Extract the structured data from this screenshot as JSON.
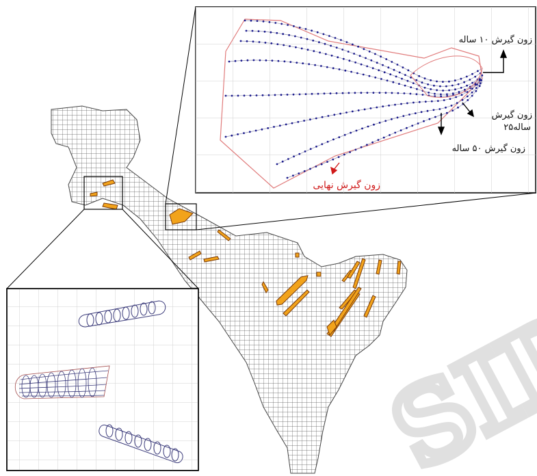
{
  "map": {
    "labels": {
      "zone_10": "زون گیرش ۱۰ ساله",
      "zone_25_line1": "زون گیرش",
      "zone_25_line2": "۲۵ساله",
      "zone_50": "زون گیرش ۵۰ ساله",
      "zone_final": "زون گیرش نهایی"
    },
    "watermark": "SID",
    "colors": {
      "grid": "#555555",
      "capture_zone_fill": "#f2a31b",
      "capture_zone_stroke": "#7a3b0a",
      "pathline": "#1a1a8c",
      "zone_10_boundary": "#e07a7a",
      "final_zone_label": "#d01a1a",
      "inset_grid": "#cfcfcf"
    }
  }
}
